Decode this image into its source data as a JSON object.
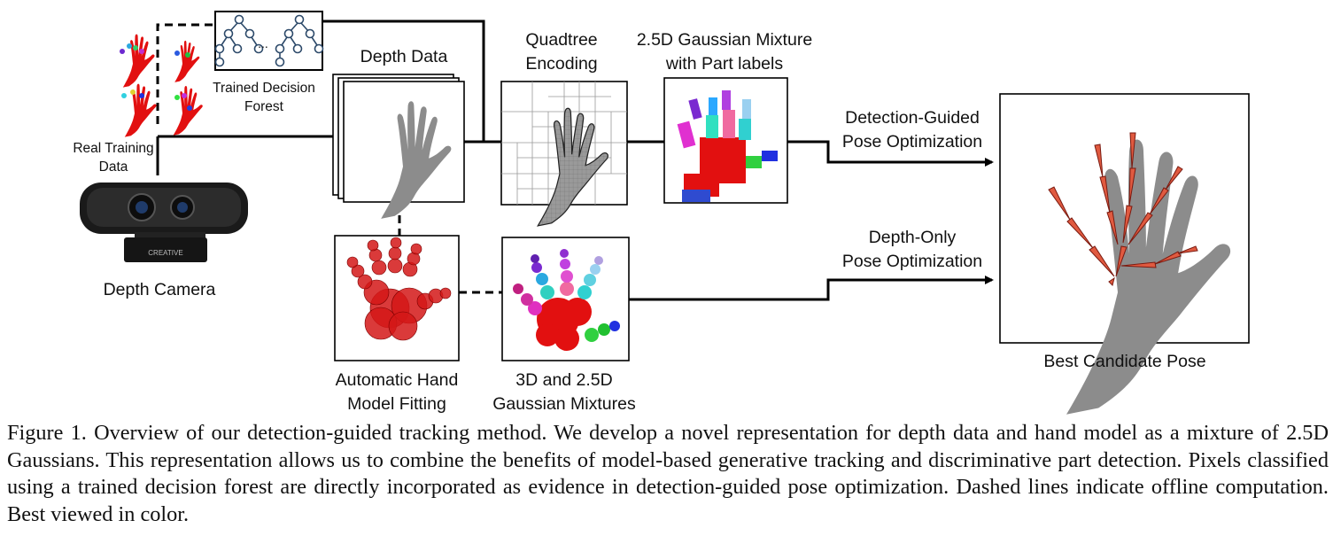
{
  "labels": {
    "real_training_data_1": "Real Training",
    "real_training_data_2": "Data",
    "trained_forest_1": "Trained Decision",
    "trained_forest_2": "Forest",
    "depth_camera": "Depth Camera",
    "camera_brand": "CREATIVE",
    "depth_data": "Depth Data",
    "quadtree_1": "Quadtree",
    "quadtree_2": "Encoding",
    "gmm_1": "2.5D Gaussian Mixture",
    "gmm_2": "with Part labels",
    "det_guided_1": "Detection-Guided",
    "det_guided_2": "Pose Optimization",
    "depth_only_1": "Depth-Only",
    "depth_only_2": "Pose Optimization",
    "best_pose": "Best Candidate Pose",
    "auto_fit_1": "Automatic Hand",
    "auto_fit_2": "Model Fitting",
    "mixtures_1": "3D and 2.5D",
    "mixtures_2": "Gaussian Mixtures",
    "ellipsis": "..."
  },
  "caption": "Figure 1. Overview of our detection-guided tracking method.  We develop a novel representation for depth data and hand model as a mixture of 2.5D Gaussians. This representation allows us to combine the benefits of model-based generative tracking and discriminative part detection. Pixels classified using a trained decision forest are directly incorporated as evidence in detection-guided pose optimization. Dashed lines indicate offline computation. Best viewed in color.",
  "colors": {
    "hand_gray": "#8c8c8c",
    "palm_red": "#e21010",
    "bone_red": "#e05a40"
  }
}
